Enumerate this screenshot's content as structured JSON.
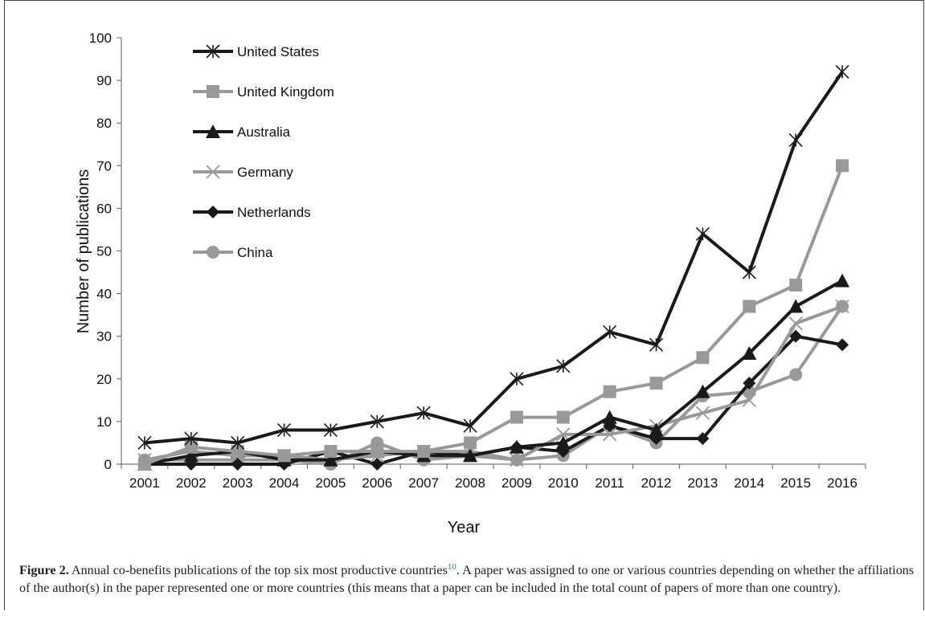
{
  "chart_data": {
    "type": "line",
    "title": "",
    "xlabel": "Year",
    "ylabel": "Number of publications",
    "ylim": [
      0,
      100
    ],
    "yticks": [
      0,
      10,
      20,
      30,
      40,
      50,
      60,
      70,
      80,
      90,
      100
    ],
    "x": [
      "2001",
      "2002",
      "2003",
      "2004",
      "2005",
      "2006",
      "2007",
      "2008",
      "2009",
      "2010",
      "2011",
      "2012",
      "2013",
      "2014",
      "2015",
      "2016"
    ],
    "legend_position": "top-left",
    "grid": false,
    "series": [
      {
        "name": "United States",
        "color": "#1a1a1a",
        "marker": "asterisk",
        "values": [
          5,
          6,
          5,
          8,
          8,
          10,
          12,
          9,
          20,
          23,
          31,
          28,
          54,
          45,
          76,
          92
        ]
      },
      {
        "name": "United Kingdom",
        "color": "#999999",
        "marker": "square",
        "values": [
          0,
          4,
          3,
          2,
          3,
          3,
          3,
          5,
          11,
          11,
          17,
          19,
          25,
          37,
          42,
          70
        ]
      },
      {
        "name": "Australia",
        "color": "#1a1a1a",
        "marker": "triangle",
        "values": [
          0,
          2,
          3,
          1,
          1,
          3,
          2,
          2,
          4,
          5,
          11,
          8,
          17,
          26,
          37,
          43
        ]
      },
      {
        "name": "Germany",
        "color": "#999999",
        "marker": "x",
        "values": [
          1,
          3,
          2,
          2,
          1,
          2,
          3,
          3,
          1,
          7,
          7,
          9,
          12,
          15,
          33,
          37
        ]
      },
      {
        "name": "Netherlands",
        "color": "#1a1a1a",
        "marker": "diamond",
        "values": [
          0,
          0,
          0,
          0,
          3,
          0,
          3,
          2,
          4,
          3,
          9,
          6,
          6,
          19,
          30,
          28
        ]
      },
      {
        "name": "China",
        "color": "#999999",
        "marker": "circle",
        "values": [
          1,
          1,
          1,
          1,
          0,
          5,
          1,
          2,
          1,
          2,
          9,
          5,
          16,
          17,
          21,
          37
        ]
      }
    ]
  },
  "caption": {
    "label": "Figure 2.",
    "text_before_ref": " Annual co-benefits publications of the top six most productive countries",
    "ref": "10",
    "text_after_ref": ". A paper was assigned to one or various countries depending on whether the affiliations of the author(s) in the paper represented one or more countries (this means that a paper can be included in the total count of papers of more than one country)."
  }
}
